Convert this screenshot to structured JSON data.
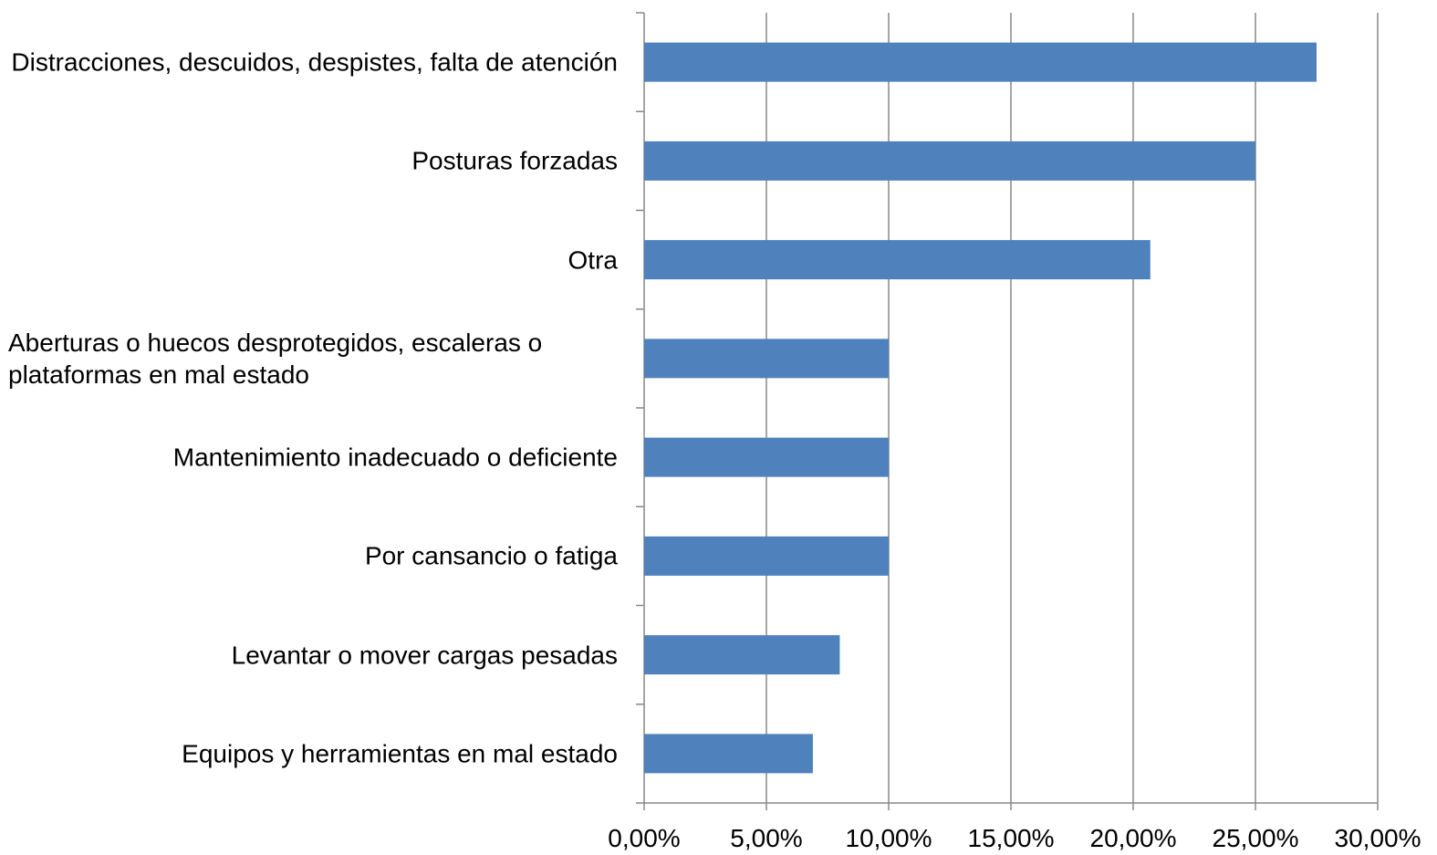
{
  "chart_data": {
    "type": "bar",
    "orientation": "horizontal",
    "categories": [
      "Distracciones, descuidos, despistes, falta de atención",
      "Posturas forzadas",
      "Otra",
      "Aberturas o huecos desprotegidos, escaleras o plataformas en mal estado",
      "Mantenimiento inadecuado o deficiente",
      "Por cansancio o fatiga",
      "Levantar o mover cargas pesadas",
      "Equipos y herramientas en mal estado"
    ],
    "values": [
      27.5,
      25,
      20.7,
      10,
      10,
      10,
      8,
      6.9
    ],
    "color": "#4f81bd",
    "xlim": [
      0,
      30
    ],
    "xticks": [
      {
        "value": 0,
        "label": "0,00%"
      },
      {
        "value": 5,
        "label": "5,00%"
      },
      {
        "value": 10,
        "label": "10,00%"
      },
      {
        "value": 15,
        "label": "15,00%"
      },
      {
        "value": 20,
        "label": "20,00%"
      },
      {
        "value": 25,
        "label": "25,00%"
      },
      {
        "value": 30,
        "label": "30,00%"
      }
    ],
    "grid": true
  }
}
